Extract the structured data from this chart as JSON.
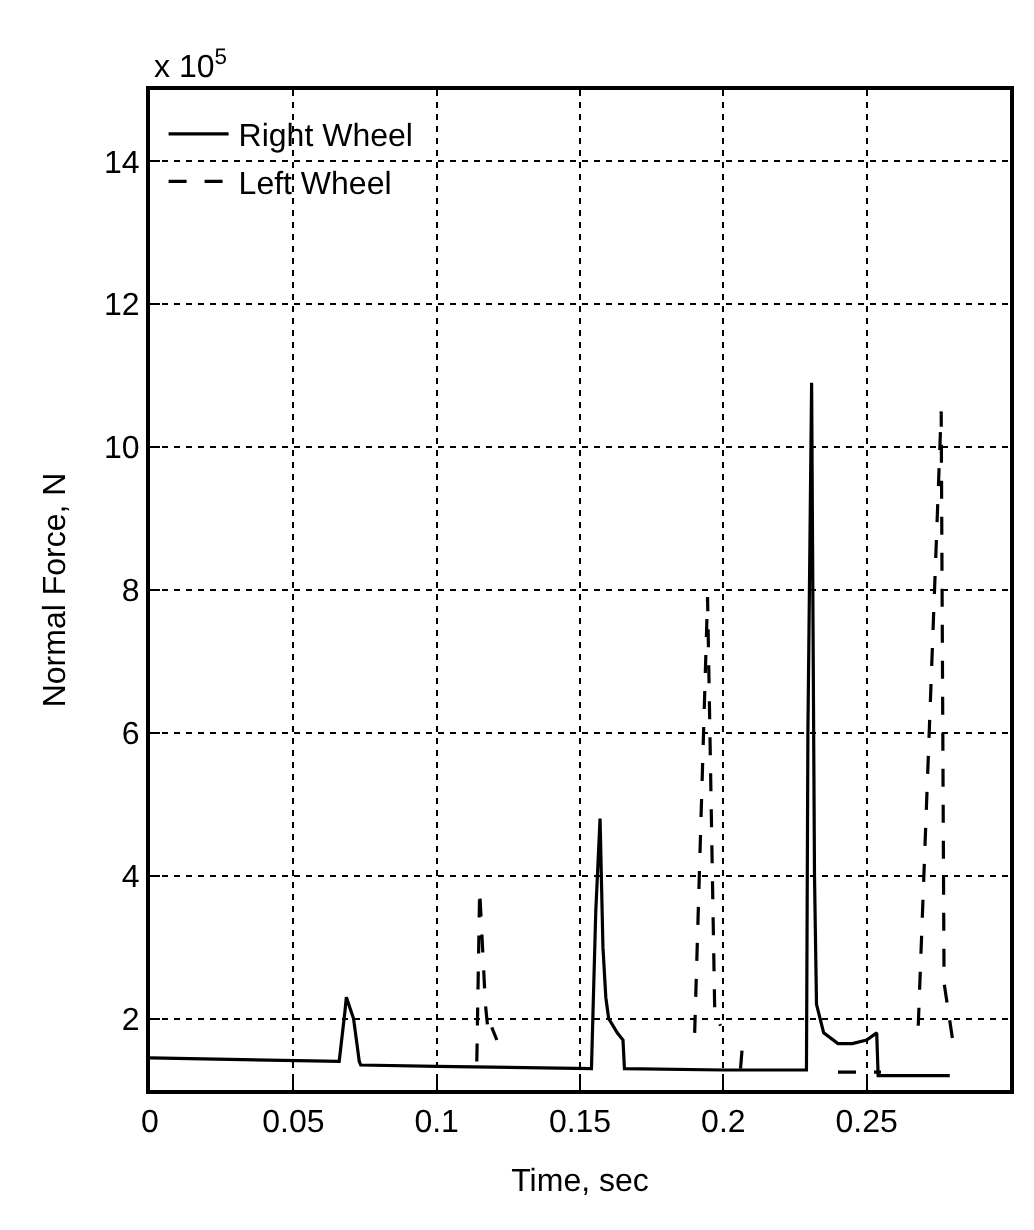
{
  "chart_data": {
    "type": "line",
    "xlabel": "Time, sec",
    "ylabel": "Normal Force, N",
    "annotations": [
      "x 10$^{5}$"
    ],
    "xlim": [
      0,
      0.3
    ],
    "ylim": [
      1,
      15
    ],
    "xticks": [
      0,
      0.05,
      0.1,
      0.15,
      0.2,
      0.25
    ],
    "yticks": [
      2,
      4,
      6,
      8,
      10,
      12,
      14
    ],
    "grid": true,
    "legend": "top left",
    "series": [
      {
        "name": "Right Wheel",
        "color": "#000000",
        "line_style": "solid",
        "x": [
          0,
          0.066,
          0.068,
          0.0685,
          0.071,
          0.073,
          0.0735,
          0.1,
          0.154,
          0.1555,
          0.157,
          0.158,
          0.159,
          0.16,
          0.163,
          0.165,
          0.1655,
          0.2,
          0.229,
          0.2295,
          0.2308,
          0.2318,
          0.2325,
          0.235,
          0.24,
          0.245,
          0.25,
          0.2535,
          0.254,
          0.27,
          0.279
        ],
        "values": [
          1.45,
          1.4,
          2.1,
          2.3,
          2.0,
          1.4,
          1.35,
          1.33,
          1.3,
          3.5,
          4.8,
          3.0,
          2.3,
          2.0,
          1.8,
          1.7,
          1.3,
          1.28,
          1.28,
          6,
          10.9,
          4,
          2.2,
          1.8,
          1.65,
          1.65,
          1.7,
          1.8,
          1.2,
          1.2,
          1.2
        ]
      },
      {
        "name": "Left Wheel",
        "color": "#000000",
        "line_style": "dashed",
        "x": [
          0.114,
          0.115,
          0.117,
          0.118,
          0.119,
          0.121,
          0.15,
          0.19,
          0.1945,
          0.197,
          0.199,
          0.2,
          0.206,
          0.207,
          0.22,
          0.24,
          0.255,
          0.26,
          0.268,
          0.276,
          0.277,
          0.28
        ],
        "values": [
          1.4,
          3.8,
          2.2,
          1.8,
          1.9,
          1.7,
          null,
          1.8,
          7.9,
          2.1,
          1.9,
          null,
          1.3,
          1.8,
          null,
          1.25,
          1.25,
          null,
          1.9,
          10.5,
          2.5,
          1.7
        ]
      }
    ]
  }
}
